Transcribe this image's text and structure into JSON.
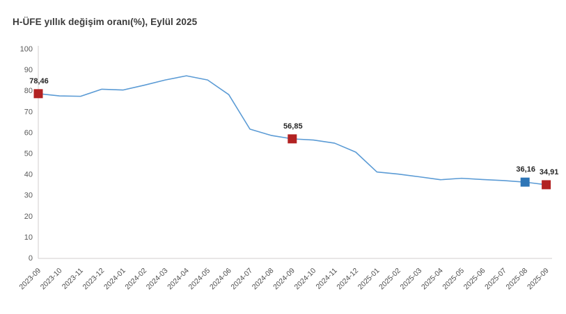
{
  "title": "H-ÜFE yıllık değişim oranı(%), Eylül 2025",
  "colors": {
    "line": "#5B9BD5",
    "red": "#B22222",
    "blue": "#2E75B6",
    "axis_line": "#D0CECE",
    "axis_text": "#595959",
    "annotation_text": "#262626",
    "title_text": "#3A3A3A"
  },
  "chart_data": {
    "type": "line",
    "title": "H-ÜFE yıllık değişim oranı(%), Eylül 2025",
    "categories": [
      "2023-09",
      "2023-10",
      "2023-11",
      "2023-12",
      "2024-01",
      "2024-02",
      "2024-03",
      "2024-04",
      "2024-05",
      "2024-06",
      "2024-07",
      "2024-08",
      "2024-09",
      "2024-10",
      "2024-11",
      "2024-12",
      "2025-01",
      "2025-02",
      "2025-03",
      "2025-04",
      "2025-05",
      "2025-06",
      "2025-07",
      "2025-08",
      "2025-09"
    ],
    "values": [
      78.46,
      77.4,
      77.2,
      80.6,
      80.2,
      82.5,
      85.0,
      87.0,
      85.0,
      78.0,
      61.5,
      58.5,
      56.85,
      56.3,
      54.8,
      50.5,
      41.0,
      40.0,
      38.7,
      37.3,
      38.0,
      37.4,
      36.9,
      36.16,
      34.91
    ],
    "ylim": [
      0,
      100
    ],
    "yticks": [
      0,
      10,
      20,
      30,
      40,
      50,
      60,
      70,
      80,
      90,
      100
    ],
    "grid": false,
    "legend": "none",
    "annotations": [
      {
        "x": "2023-09",
        "value": 78.46,
        "label": "78,46",
        "marker_color": "red"
      },
      {
        "x": "2024-09",
        "value": 56.85,
        "label": "56,85",
        "marker_color": "red"
      },
      {
        "x": "2025-08",
        "value": 36.16,
        "label": "36,16",
        "marker_color": "blue"
      },
      {
        "x": "2025-09",
        "value": 34.91,
        "label": "34,91",
        "marker_color": "red"
      }
    ]
  }
}
